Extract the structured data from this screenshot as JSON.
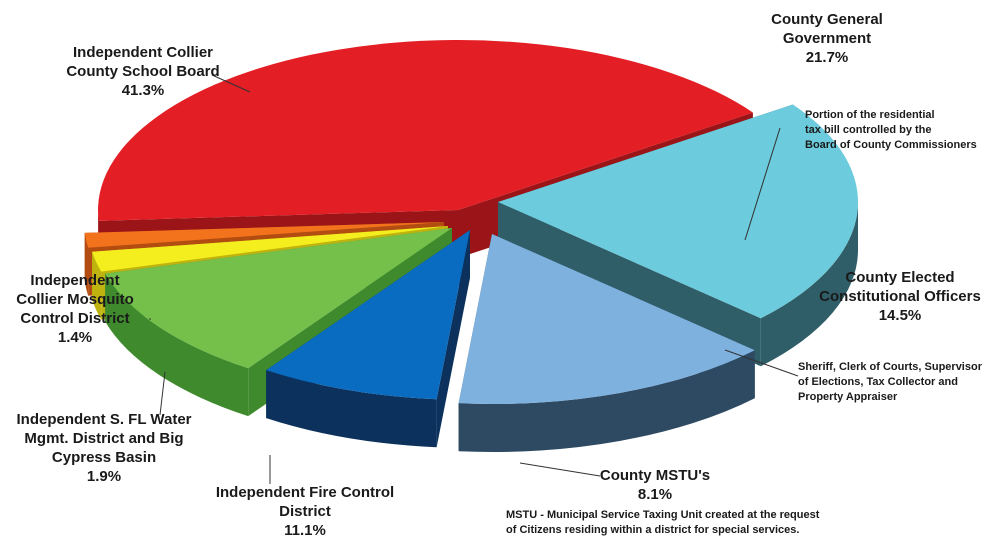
{
  "chart_data": {
    "type": "pie",
    "title": "",
    "slices": [
      {
        "label_lines": [
          "County General",
          "Government"
        ],
        "pct_label": "21.7%",
        "value": 21.7,
        "color": "#6ccbdc",
        "side": "#2f5e68",
        "note": [
          "Portion of the residential",
          "tax bill controlled by the",
          "Board of County Commissioners"
        ]
      },
      {
        "label_lines": [
          "County Elected",
          "Constitutional Officers"
        ],
        "pct_label": "14.5%",
        "value": 14.5,
        "color": "#7fb1df",
        "side": "#2e4a63",
        "note": [
          "Sheriff, Clerk of Courts, Supervisor",
          "of  Elections, Tax Collector and",
          "Property Appraiser"
        ]
      },
      {
        "label_lines": [
          "County MSTU's"
        ],
        "pct_label": "8.1%",
        "value": 8.1,
        "color": "#0a6cc0",
        "side": "#0b315c",
        "note": [
          "MSTU - Municipal Service Taxing Unit created at the request",
          "of Citizens residing within a district for special services."
        ]
      },
      {
        "label_lines": [
          "Independent Fire Control",
          "District"
        ],
        "pct_label": "11.1%",
        "value": 11.1,
        "color": "#74c04a",
        "side": "#3f8a2c",
        "note": []
      },
      {
        "label_lines": [
          "Independent S. FL Water",
          "Mgmt. District and Big",
          "Cypress Basin"
        ],
        "pct_label": "1.9%",
        "value": 1.9,
        "color": "#f4ee1e",
        "side": "#bfb30f",
        "note": []
      },
      {
        "label_lines": [
          "Independent",
          "Collier Mosquito",
          "Control District"
        ],
        "pct_label": "1.4%",
        "value": 1.4,
        "color": "#f3721c",
        "side": "#b24c10",
        "note": []
      },
      {
        "label_lines": [
          "Independent Collier",
          "County School Board"
        ],
        "pct_label": "41.3%",
        "value": 41.3,
        "color": "#e31e24",
        "side": "#9a1418",
        "note": []
      }
    ]
  }
}
